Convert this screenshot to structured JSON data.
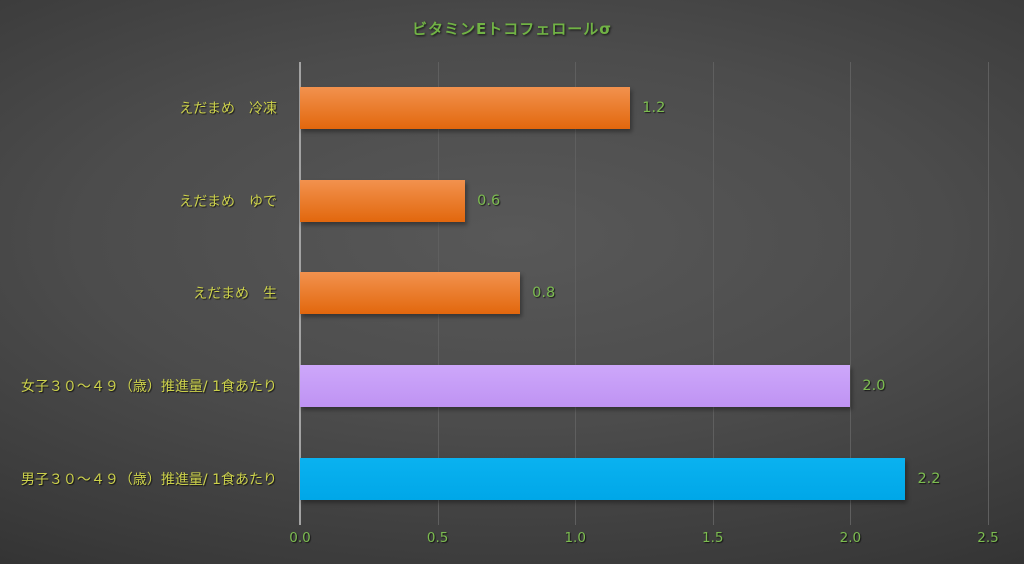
{
  "chart_data": {
    "type": "bar",
    "orientation": "horizontal",
    "title": "ビタミンEトコフェロールσ",
    "categories": [
      "えだまめ　冷凍",
      "えだまめ　ゆで",
      "えだまめ　生",
      "女子３０～４９（歳）推進量/ 1食あたり",
      "男子３０～４９（歳）推進量/ 1食あたり"
    ],
    "values": [
      1.2,
      0.6,
      0.8,
      2.0,
      2.2
    ],
    "value_labels": [
      "1.2",
      "0.6",
      "0.8",
      "2.0",
      "2.2"
    ],
    "xlabel": "",
    "ylabel": "",
    "xlim": [
      0,
      2.5
    ],
    "x_ticks": [
      "0.0",
      "0.5",
      "1.0",
      "1.5",
      "2.0",
      "2.5"
    ],
    "grid": "on",
    "legend": "none",
    "bar_colors": [
      "#ed7d31",
      "#ed7d31",
      "#ed7d31",
      "#c49cf6",
      "#00aeef"
    ],
    "bar_gradients": [
      {
        "top": "#f2924e",
        "bottom": "#e2670d"
      },
      {
        "top": "#f2924e",
        "bottom": "#e2670d"
      },
      {
        "top": "#f2924e",
        "bottom": "#e2670d"
      },
      {
        "top": "#cda7fa",
        "bottom": "#bf93f3"
      },
      {
        "top": "#0ab2f0",
        "bottom": "#00a7e8"
      }
    ],
    "colors": {
      "background_center": "#565656",
      "background_edge": "#232323",
      "title_text": "#71b345",
      "value_text": "#7cbc50",
      "category_text": "#ccd14b",
      "tick_text": "#7cbc50",
      "gridline": "#5f5f5f",
      "axis_line": "#a3a3a3"
    }
  }
}
